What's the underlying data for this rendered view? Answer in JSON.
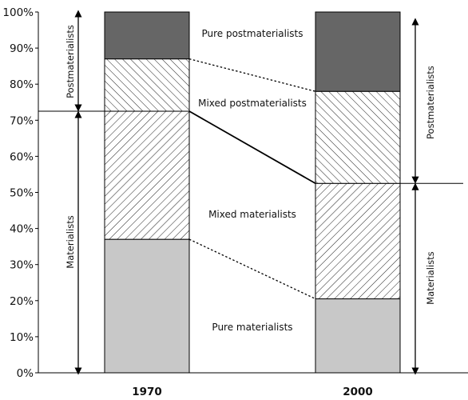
{
  "chart_data": {
    "type": "bar",
    "stacked": true,
    "categories": [
      "1970",
      "2000"
    ],
    "series": [
      {
        "name": "Pure materialists",
        "values": [
          37,
          20.5
        ],
        "color": "#c8c8c8",
        "pattern": "solid"
      },
      {
        "name": "Mixed materialists",
        "values": [
          35.5,
          32
        ],
        "color": "#ffffff",
        "pattern": "diag-down"
      },
      {
        "name": "Mixed postmaterialists",
        "values": [
          14.5,
          25.5
        ],
        "color": "#ffffff",
        "pattern": "diag-up"
      },
      {
        "name": "Pure postmaterialists",
        "values": [
          13,
          22
        ],
        "color": "#666666",
        "pattern": "solid"
      }
    ],
    "ylim": [
      0,
      100
    ],
    "yticks": [
      "0%",
      "10%",
      "20%",
      "30%",
      "40%",
      "50%",
      "60%",
      "70%",
      "80%",
      "90%",
      "100%"
    ],
    "group_labels": {
      "1970": {
        "postmaterialists": "Postmaterialists",
        "materialists": "Materialists",
        "boundary": 72.5
      },
      "2000": {
        "postmaterialists": "Postmaterialists",
        "materialists": "Materialists",
        "boundary": 52.5
      }
    },
    "grid": false
  }
}
